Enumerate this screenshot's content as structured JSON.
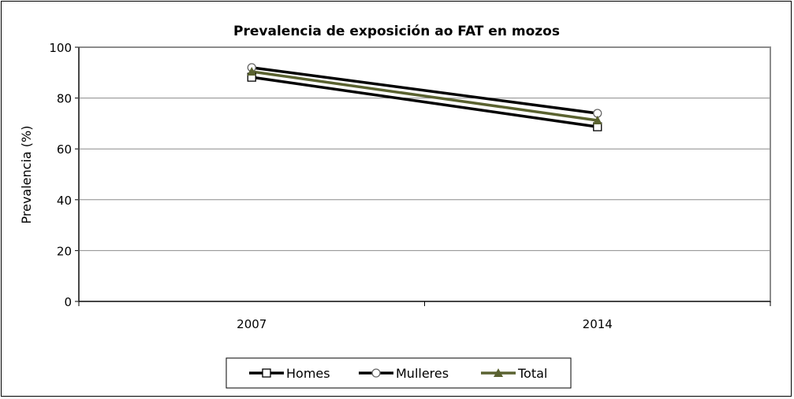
{
  "chart_data": {
    "type": "line",
    "title": "Prevalencia de exposición ao FAT en mozos",
    "xlabel": "",
    "ylabel": "Prevalencia (%)",
    "categories": [
      "2007",
      "2014"
    ],
    "ylim": [
      0,
      100
    ],
    "yticks": [
      0,
      20,
      40,
      60,
      80,
      100
    ],
    "grid": true,
    "legend": "bottom",
    "series": [
      {
        "name": "Homes",
        "values": [
          88.2,
          68.7
        ],
        "color": "#000000",
        "marker": "square"
      },
      {
        "name": "Mulleres",
        "values": [
          92,
          74
        ],
        "color": "#000000",
        "marker": "circle"
      },
      {
        "name": "Total",
        "values": [
          90.4,
          71.2
        ],
        "color": "#5a6230",
        "marker": "triangle"
      }
    ]
  }
}
